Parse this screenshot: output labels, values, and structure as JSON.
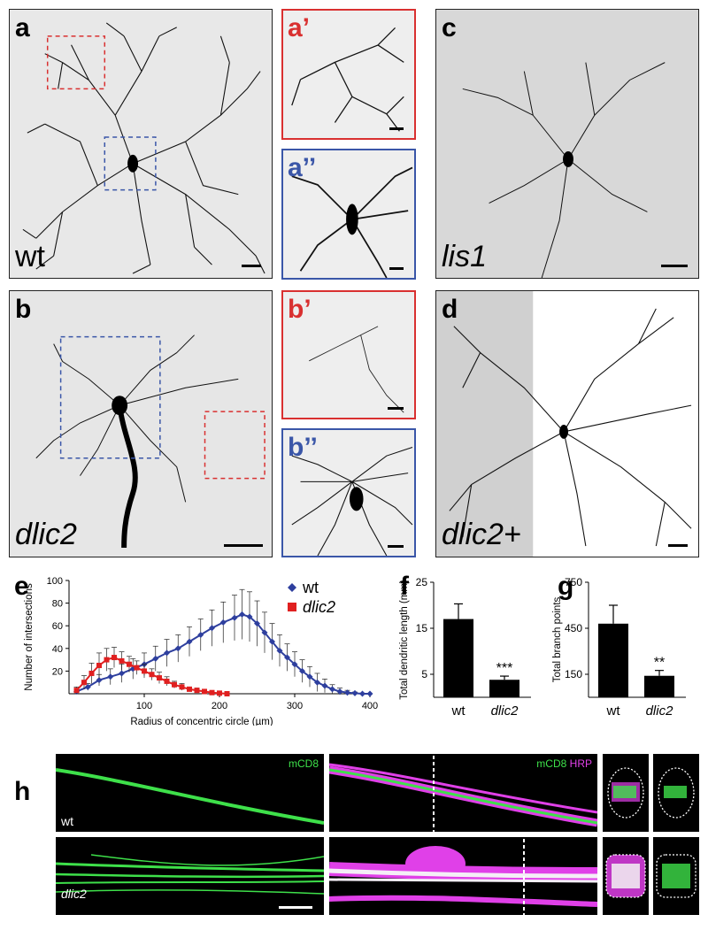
{
  "panels": {
    "a": {
      "label": "a",
      "genotype": "wt"
    },
    "a1": {
      "label": "a’"
    },
    "a2": {
      "label": "a’’"
    },
    "b": {
      "label": "b",
      "genotype": "dlic2"
    },
    "b1": {
      "label": "b’"
    },
    "b2": {
      "label": "b’’"
    },
    "c": {
      "label": "c",
      "genotype": "lis1"
    },
    "d": {
      "label": "d",
      "genotype": "dlic2+"
    },
    "e": {
      "label": "e"
    },
    "f": {
      "label": "f"
    },
    "g": {
      "label": "g"
    },
    "h": {
      "label": "h",
      "row1": "wt",
      "row2": "dlic2",
      "ch1": "mCD8",
      "ch2": "HRP"
    }
  },
  "colors": {
    "wt": "#2e3f9e",
    "dlic2": "#e02020",
    "red_box": "#d93030",
    "blue_box": "#3a56a8",
    "green": "#3ee04a",
    "magenta": "#e040e8"
  },
  "chart_data": [
    {
      "type": "line",
      "xlabel": "Radius of concentric circle (µm)",
      "ylabel": "Number of intersections",
      "xlim": [
        0,
        400
      ],
      "ylim": [
        0,
        100
      ],
      "xticks": [
        "100",
        "200",
        "300",
        "400"
      ],
      "yticks": [
        "20",
        "40",
        "60",
        "80",
        "100"
      ],
      "legend_position": "top-right",
      "series": [
        {
          "name": "wt",
          "marker": "diamond",
          "x": [
            10,
            25,
            40,
            55,
            70,
            85,
            100,
            115,
            130,
            145,
            160,
            175,
            190,
            205,
            220,
            230,
            240,
            250,
            260,
            270,
            280,
            290,
            300,
            310,
            320,
            330,
            340,
            350,
            360,
            370,
            380,
            390,
            400
          ],
          "y": [
            2,
            6,
            12,
            15,
            18,
            22,
            26,
            31,
            36,
            40,
            46,
            52,
            58,
            63,
            67,
            70,
            68,
            62,
            54,
            46,
            38,
            32,
            26,
            20,
            15,
            10,
            7,
            4,
            2,
            1,
            0.5,
            0,
            0
          ],
          "err": [
            1,
            3,
            5,
            7,
            8,
            9,
            10,
            11,
            12,
            12,
            13,
            14,
            16,
            18,
            20,
            22,
            22,
            20,
            18,
            16,
            14,
            12,
            11,
            10,
            9,
            8,
            6,
            4,
            3,
            2,
            1,
            0,
            0
          ]
        },
        {
          "name": "dlic2",
          "marker": "square",
          "x": [
            10,
            20,
            30,
            40,
            50,
            60,
            70,
            80,
            90,
            100,
            110,
            120,
            130,
            140,
            150,
            160,
            170,
            180,
            190,
            200,
            210
          ],
          "y": [
            3,
            10,
            18,
            25,
            30,
            32,
            29,
            26,
            23,
            20,
            17,
            14,
            11,
            8,
            6,
            4,
            3,
            2,
            1,
            0.5,
            0
          ],
          "err": [
            3,
            6,
            9,
            11,
            10,
            9,
            8,
            7,
            6,
            6,
            5,
            5,
            4,
            3,
            3,
            2,
            2,
            1,
            1,
            0,
            0
          ]
        }
      ]
    },
    {
      "type": "bar",
      "ylabel": "Total dendritic length (mm)",
      "categories": [
        "wt",
        "dlic2"
      ],
      "values": [
        17,
        3.8
      ],
      "errors": [
        3.3,
        0.8
      ],
      "yticks": [
        "5",
        "15",
        "25"
      ],
      "ylim": [
        0,
        25
      ],
      "significance": "***"
    },
    {
      "type": "bar",
      "ylabel": "Total branch points",
      "categories": [
        "wt",
        "dlic2"
      ],
      "values": [
        480,
        140
      ],
      "errors": [
        120,
        35
      ],
      "yticks": [
        "150",
        "450",
        "750"
      ],
      "ylim": [
        0,
        750
      ],
      "significance": "**"
    }
  ]
}
